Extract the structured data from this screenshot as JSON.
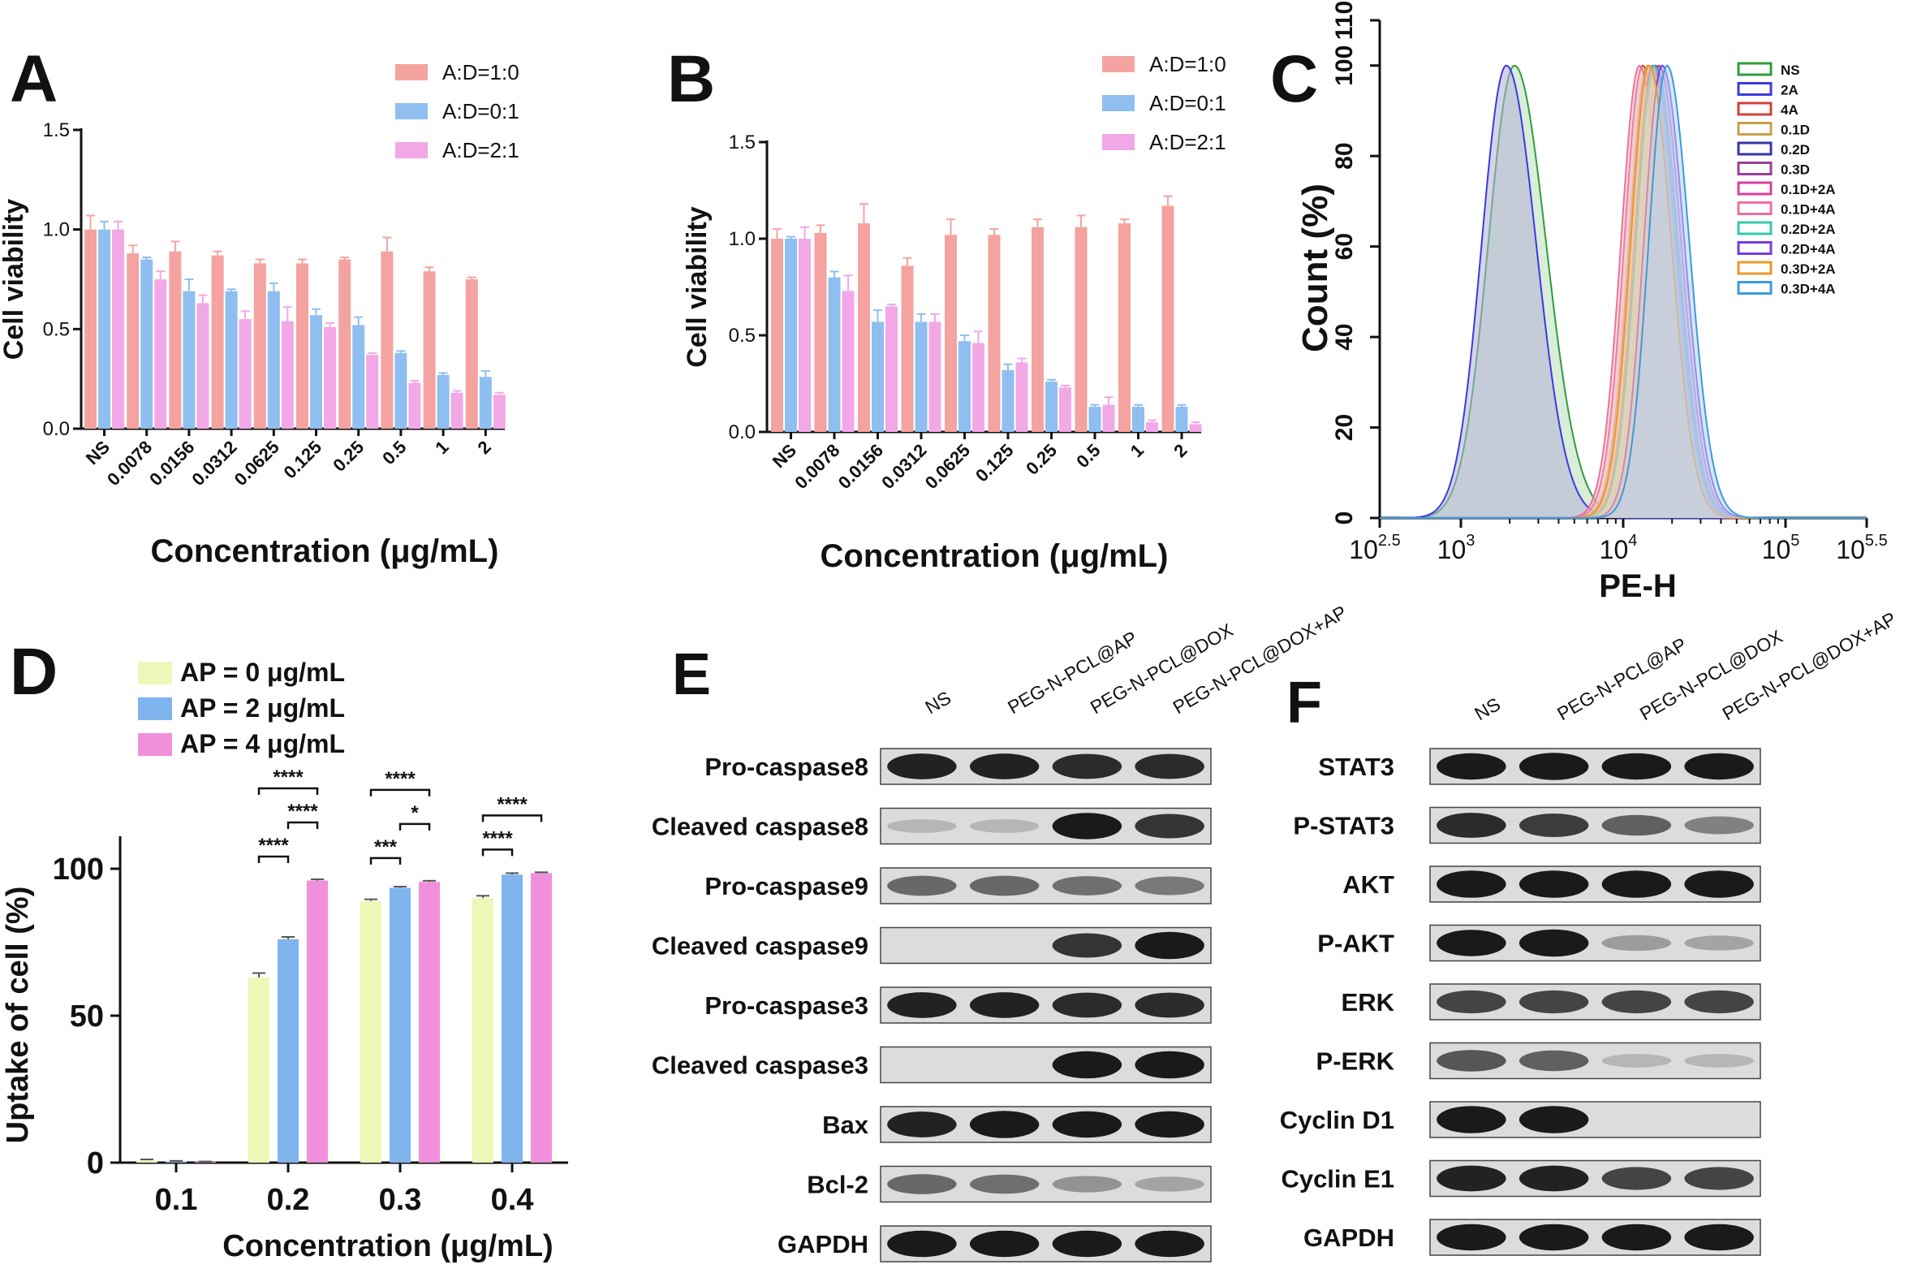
{
  "colors": {
    "salmon": "#f4a3a0",
    "blue": "#8fbff0",
    "pink": "#f2a8e6",
    "yellow": "#eef7b8",
    "bright_blue": "#7fb4ef",
    "bright_pink": "#f08fdc",
    "axis": "#111111",
    "blot_bg": "#d4d4d4",
    "band": "#1a1a1a"
  },
  "chart_data": [
    {
      "panel": "A",
      "type": "bar",
      "ylabel": "Cell viability",
      "xlabel": "Concentration (μg/mL)",
      "ylim": [
        0,
        1.5
      ],
      "yticks": [
        "0.0",
        "0.5",
        "1.0",
        "1.5"
      ],
      "yticks_values": [
        0,
        0.5,
        1.0,
        1.5
      ],
      "categories": [
        "NS",
        "0.0078",
        "0.0156",
        "0.0312",
        "0.0625",
        "0.125",
        "0.25",
        "0.5",
        "1",
        "2"
      ],
      "series": [
        {
          "name": "A:D=1:0",
          "color": "#f4a3a0",
          "values": [
            1.0,
            0.88,
            0.89,
            0.87,
            0.83,
            0.83,
            0.85,
            0.89,
            0.79,
            0.75
          ],
          "errors": [
            0.07,
            0.04,
            0.05,
            0.02,
            0.02,
            0.02,
            0.01,
            0.07,
            0.02,
            0.01
          ]
        },
        {
          "name": "A:D=0:1",
          "color": "#8fbff0",
          "values": [
            1.0,
            0.85,
            0.69,
            0.69,
            0.69,
            0.57,
            0.52,
            0.38,
            0.27,
            0.26
          ],
          "errors": [
            0.04,
            0.01,
            0.06,
            0.01,
            0.04,
            0.03,
            0.04,
            0.01,
            0.01,
            0.03
          ]
        },
        {
          "name": "A:D=2:1",
          "color": "#f2a8e6",
          "values": [
            1.0,
            0.75,
            0.63,
            0.55,
            0.54,
            0.51,
            0.37,
            0.23,
            0.18,
            0.17
          ],
          "errors": [
            0.04,
            0.04,
            0.04,
            0.04,
            0.07,
            0.02,
            0.01,
            0.01,
            0.01,
            0.01
          ]
        }
      ]
    },
    {
      "panel": "B",
      "type": "bar",
      "ylabel": "Cell viability",
      "xlabel": "Concentration (μg/mL)",
      "ylim": [
        0,
        1.5
      ],
      "yticks": [
        "0.0",
        "0.5",
        "1.0",
        "1.5"
      ],
      "yticks_values": [
        0,
        0.5,
        1.0,
        1.5
      ],
      "categories": [
        "NS",
        "0.0078",
        "0.0156",
        "0.0312",
        "0.0625",
        "0.125",
        "0.25",
        "0.5",
        "1",
        "2"
      ],
      "series": [
        {
          "name": "A:D=1:0",
          "color": "#f4a3a0",
          "values": [
            1.0,
            1.03,
            1.08,
            0.86,
            1.02,
            1.02,
            1.06,
            1.06,
            1.08,
            1.17
          ],
          "errors": [
            0.05,
            0.04,
            0.1,
            0.04,
            0.08,
            0.03,
            0.04,
            0.06,
            0.02,
            0.05
          ]
        },
        {
          "name": "A:D=0:1",
          "color": "#8fbff0",
          "values": [
            1.0,
            0.8,
            0.57,
            0.57,
            0.47,
            0.32,
            0.26,
            0.13,
            0.13,
            0.13
          ],
          "errors": [
            0.01,
            0.03,
            0.06,
            0.04,
            0.03,
            0.03,
            0.01,
            0.01,
            0.01,
            0.01
          ]
        },
        {
          "name": "A:D=2:1",
          "color": "#f2a8e6",
          "values": [
            1.0,
            0.73,
            0.65,
            0.57,
            0.46,
            0.36,
            0.23,
            0.14,
            0.05,
            0.04
          ],
          "errors": [
            0.06,
            0.08,
            0.01,
            0.04,
            0.06,
            0.02,
            0.01,
            0.04,
            0.01,
            0.01
          ]
        }
      ]
    },
    {
      "panel": "C",
      "type": "line",
      "ylabel": "Count (%)",
      "xlabel": "PE-H",
      "ylim": [
        0,
        110
      ],
      "yticks": [
        "0",
        "20",
        "40",
        "60",
        "80",
        "100",
        "110"
      ],
      "yticks_values": [
        0,
        20,
        40,
        60,
        80,
        100,
        110
      ],
      "xlim_log10": [
        2.5,
        5.5
      ],
      "xticks": [
        {
          "base": "10",
          "exp": "2.5",
          "value": 2.5
        },
        {
          "base": "10",
          "exp": "3",
          "value": 3
        },
        {
          "base": "10",
          "exp": "4",
          "value": 4
        },
        {
          "base": "10",
          "exp": "5",
          "value": 5
        },
        {
          "base": "10",
          "exp": "5.5",
          "value": 5.5
        }
      ],
      "series": [
        {
          "name": "NS",
          "color": "#2e9e3e",
          "peak_log10": 3.33,
          "width": 0.17,
          "fill": "#b9dfb9"
        },
        {
          "name": "2A",
          "color": "#3a3ae0",
          "peak_log10": 3.28,
          "width": 0.16,
          "fill": "#b0b0d6"
        },
        {
          "name": "4A",
          "color": "#d0403c",
          "peak_log10": 4.12,
          "width": 0.12,
          "fill": "#e8b8b8"
        },
        {
          "name": "0.1D",
          "color": "#c8a04a",
          "peak_log10": 4.15,
          "width": 0.12,
          "fill": "#e6d3a8"
        },
        {
          "name": "0.2D",
          "color": "#3636a8",
          "peak_log10": 4.2,
          "width": 0.12,
          "fill": "#b2b2d8"
        },
        {
          "name": "0.3D",
          "color": "#9a3f9a",
          "peak_log10": 4.22,
          "width": 0.12,
          "fill": "#d6b2d6"
        },
        {
          "name": "0.1D+2A",
          "color": "#d8409e",
          "peak_log10": 4.18,
          "width": 0.12,
          "fill": "#eeb6d8"
        },
        {
          "name": "0.1D+4A",
          "color": "#f06fa0",
          "peak_log10": 4.1,
          "width": 0.12,
          "fill": "#f6c0d4"
        },
        {
          "name": "0.2D+2A",
          "color": "#36c8a8",
          "peak_log10": 4.19,
          "width": 0.12,
          "fill": "#b8e8dc"
        },
        {
          "name": "0.2D+4A",
          "color": "#7a3ae0",
          "peak_log10": 4.24,
          "width": 0.12,
          "fill": "#c8b4ee"
        },
        {
          "name": "0.3D+2A",
          "color": "#e89a2a",
          "peak_log10": 4.16,
          "width": 0.12,
          "fill": "#f4d4a4"
        },
        {
          "name": "0.3D+4A",
          "color": "#3a9ae0",
          "peak_log10": 4.27,
          "width": 0.12,
          "fill": "#b4d4f0"
        }
      ]
    },
    {
      "panel": "D",
      "type": "bar",
      "ylabel": "Uptake of cell (%)",
      "xlabel": "Concentration (μg/mL)",
      "ylim": [
        0,
        100
      ],
      "yticks": [
        "0",
        "50",
        "100"
      ],
      "yticks_values": [
        0,
        50,
        100
      ],
      "categories": [
        "0.1",
        "0.2",
        "0.3",
        "0.4"
      ],
      "series": [
        {
          "name": "AP = 0 μg/mL",
          "color": "#eef7b8",
          "values": [
            0.8,
            63,
            89,
            90
          ],
          "errors": [
            0.3,
            1.5,
            0.6,
            0.8
          ]
        },
        {
          "name": "AP = 2 μg/mL",
          "color": "#7fb4ef",
          "values": [
            0.4,
            76,
            93.5,
            98
          ],
          "errors": [
            0.2,
            0.8,
            0.4,
            0.5
          ]
        },
        {
          "name": "AP = 4 μg/mL",
          "color": "#f08fdc",
          "values": [
            0.3,
            96,
            95.5,
            98.5
          ],
          "errors": [
            0.1,
            0.4,
            0.4,
            0.3
          ]
        }
      ],
      "significance": [
        {
          "group": 1,
          "from": 0,
          "to": 1,
          "label": "****",
          "level": 0
        },
        {
          "group": 1,
          "from": 1,
          "to": 2,
          "label": "****",
          "level": 1
        },
        {
          "group": 1,
          "from": 0,
          "to": 2,
          "label": "****",
          "level": 2
        },
        {
          "group": 2,
          "from": 0,
          "to": 1,
          "label": "***",
          "level": 0
        },
        {
          "group": 2,
          "from": 1,
          "to": 2,
          "label": "*",
          "level": 1
        },
        {
          "group": 2,
          "from": 0,
          "to": 2,
          "label": "****",
          "level": 2
        },
        {
          "group": 3,
          "from": 0,
          "to": 1,
          "label": "****",
          "level": 0
        },
        {
          "group": 3,
          "from": 0,
          "to": 2,
          "label": "****",
          "level": 1
        }
      ]
    }
  ],
  "panels": {
    "A": {
      "label": "A"
    },
    "B": {
      "label": "B"
    },
    "C": {
      "label": "C"
    },
    "D": {
      "label": "D"
    },
    "E": {
      "label": "E",
      "columns": [
        "NS",
        "PEG-N-PCL@AP",
        "PEG-N-PCL@DOX",
        "PEG-N-PCL@DOX+AP"
      ],
      "rows": [
        {
          "name": "Pro-caspase8",
          "intensity": [
            0.9,
            0.9,
            0.85,
            0.85
          ]
        },
        {
          "name": "Cleaved caspase8",
          "intensity": [
            0.05,
            0.05,
            0.95,
            0.8
          ]
        },
        {
          "name": "Pro-caspase9",
          "intensity": [
            0.5,
            0.5,
            0.45,
            0.4
          ]
        },
        {
          "name": "Cleaved caspase9",
          "intensity": [
            0.0,
            0.0,
            0.8,
            1.0
          ]
        },
        {
          "name": "Pro-caspase3",
          "intensity": [
            0.9,
            0.9,
            0.85,
            0.85
          ]
        },
        {
          "name": "Cleaved caspase3",
          "intensity": [
            0.0,
            0.0,
            1.0,
            1.0
          ]
        },
        {
          "name": "Bax",
          "intensity": [
            0.9,
            1.0,
            0.95,
            0.95
          ]
        },
        {
          "name": "Bcl-2",
          "intensity": [
            0.5,
            0.45,
            0.25,
            0.15
          ]
        },
        {
          "name": "GAPDH",
          "intensity": [
            0.95,
            0.95,
            0.95,
            0.95
          ]
        }
      ]
    },
    "F": {
      "label": "F",
      "columns": [
        "NS",
        "PEG-N-PCL@AP",
        "PEG-N-PCL@DOX",
        "PEG-N-PCL@DOX+AP"
      ],
      "rows": [
        {
          "name": "STAT3",
          "intensity": [
            0.95,
            1.0,
            0.95,
            0.95
          ]
        },
        {
          "name": "P-STAT3",
          "intensity": [
            0.85,
            0.75,
            0.55,
            0.35
          ]
        },
        {
          "name": "AKT",
          "intensity": [
            1.0,
            1.0,
            1.0,
            1.0
          ]
        },
        {
          "name": "P-AKT",
          "intensity": [
            0.95,
            1.0,
            0.2,
            0.15
          ]
        },
        {
          "name": "ERK",
          "intensity": [
            0.7,
            0.7,
            0.7,
            0.7
          ]
        },
        {
          "name": "P-ERK",
          "intensity": [
            0.6,
            0.55,
            0.05,
            0.05
          ]
        },
        {
          "name": "Cyclin D1",
          "intensity": [
            1.0,
            1.0,
            0.0,
            0.0
          ]
        },
        {
          "name": "Cyclin E1",
          "intensity": [
            0.9,
            0.9,
            0.7,
            0.7
          ]
        },
        {
          "name": "GAPDH",
          "intensity": [
            0.95,
            0.95,
            0.95,
            0.95
          ]
        }
      ]
    }
  }
}
